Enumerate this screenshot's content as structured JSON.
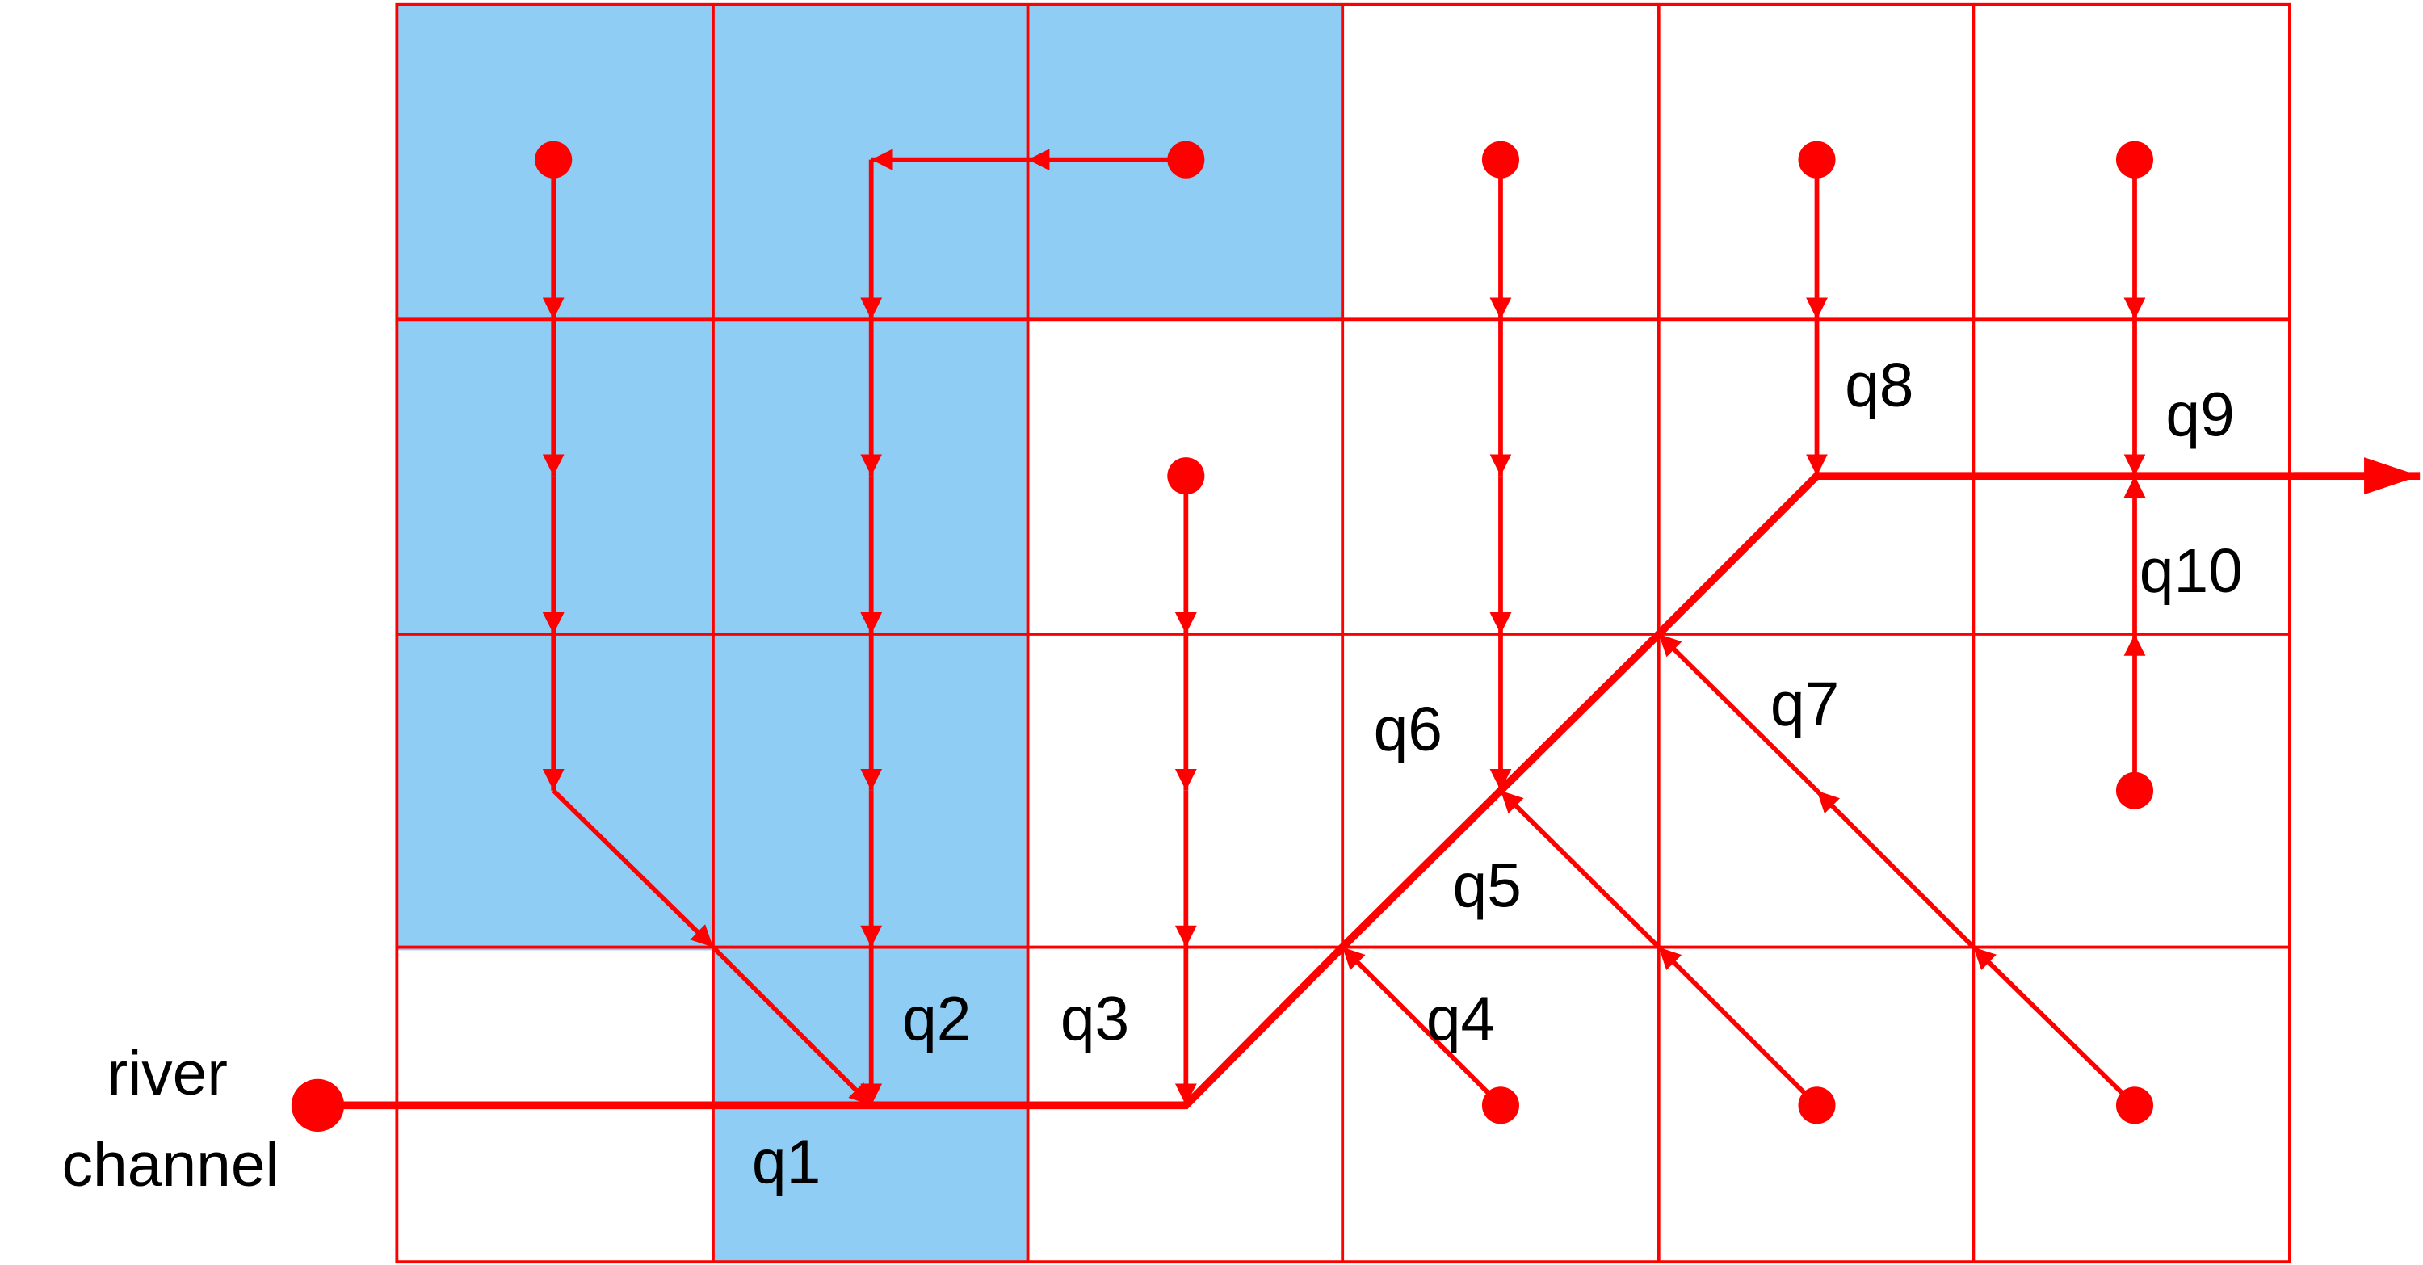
{
  "colors": {
    "stroke": "#ff0000",
    "shade": "#8fcdf5",
    "text": "#000000",
    "background": "#ffffff"
  },
  "labels": {
    "river": "river",
    "channel": "channel",
    "q1": "q1",
    "q2": "q2",
    "q3": "q3",
    "q4": "q4",
    "q5": "q5",
    "q6": "q6",
    "q7": "q7",
    "q8": "q8",
    "q9": "q9",
    "q10": "q10"
  }
}
